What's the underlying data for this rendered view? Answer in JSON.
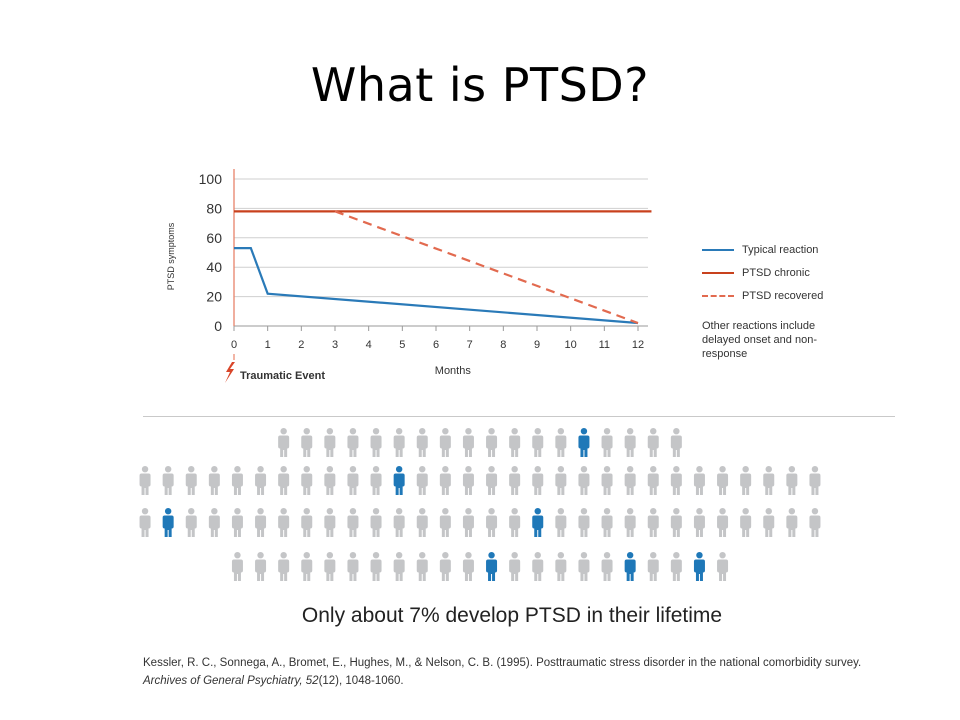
{
  "slide": {
    "title": "What is PTSD?"
  },
  "chart_data": {
    "type": "line",
    "ylabel": "PTSD symptoms",
    "xlabel": "Months",
    "x_ticks": [
      0,
      1,
      2,
      3,
      4,
      5,
      6,
      7,
      8,
      9,
      10,
      11,
      12
    ],
    "y_ticks": [
      0,
      20,
      40,
      60,
      80,
      100
    ],
    "xlim": [
      0,
      12
    ],
    "ylim": [
      0,
      100
    ],
    "grid": true,
    "legend": "right",
    "annotation": "Traumatic Event",
    "series": [
      {
        "name": "Typical reaction",
        "color": "#2a7ab8",
        "style": "solid",
        "x": [
          0,
          0.5,
          1,
          12
        ],
        "y": [
          53,
          53,
          22,
          2
        ]
      },
      {
        "name": "PTSD chronic",
        "color": "#c8411d",
        "style": "solid",
        "x": [
          0,
          12.4
        ],
        "y": [
          78,
          78
        ]
      },
      {
        "name": "PTSD recovered",
        "color": "#e26a4f",
        "style": "dashed",
        "x": [
          3,
          12
        ],
        "y": [
          78,
          2
        ]
      }
    ],
    "note": "Other reactions include delayed onset and non-response"
  },
  "infographic": {
    "gray_color": "#c4c5c7",
    "highlight_color": "#1f78b8",
    "rows": [
      {
        "count": 18,
        "highlighted": [
          13
        ]
      },
      {
        "count": 30,
        "highlighted": [
          11
        ]
      },
      {
        "count": 30,
        "highlighted": [
          1,
          17
        ]
      },
      {
        "count": 22,
        "highlighted": [
          11,
          17,
          20
        ]
      }
    ],
    "caption": "Only about 7% develop PTSD in their lifetime"
  },
  "reference": {
    "text": "Kessler, R. C., Sonnega, A., Bromet, E., Hughes, M., & Nelson, C. B. (1995). Posttraumatic stress disorder in the national comorbidity survey. ",
    "journal": "Archives of General Psychiatry, 52",
    "issue_pages": "(12), 1048-1060."
  }
}
